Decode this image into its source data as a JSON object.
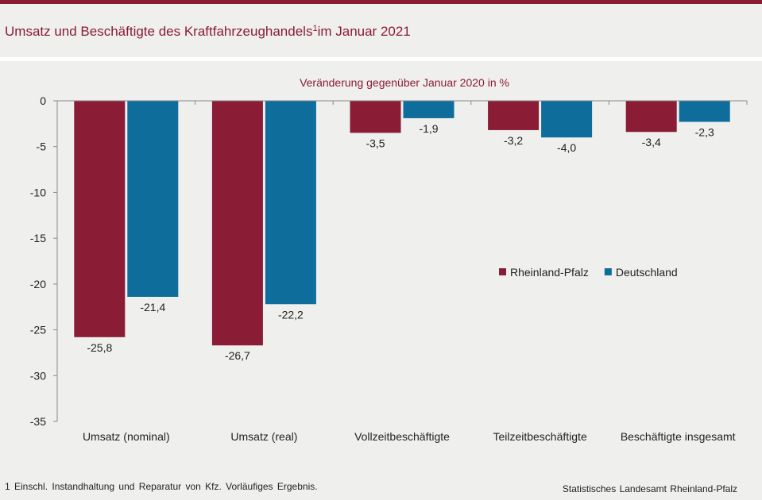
{
  "header": {
    "title_main": "Umsatz und Beschäftigte des Kraftfahrzeughandels",
    "title_sup": "1",
    "title_tail": "im Januar 2021"
  },
  "footer": {
    "footnote": "1 Einschl. Instandhaltung und Reparatur von Kfz. Vorläufiges Ergebnis.",
    "source": "Statistisches Landesamt Rheinland-Pfalz"
  },
  "chart_data": {
    "type": "bar",
    "subtitle": "Veränderung gegenüber Januar 2020 in %",
    "categories": [
      "Umsatz (nominal)",
      "Umsatz (real)",
      "Vollzeitbeschäftigte",
      "Teilzeitbeschäftigte",
      "Beschäftigte insgesamt"
    ],
    "series": [
      {
        "name": "Rheinland-Pfalz",
        "color": "#8a1c35",
        "values": [
          -25.8,
          -26.7,
          -3.5,
          -3.2,
          -3.4
        ],
        "labels": [
          "-25,8",
          "-26,7",
          "-3,5",
          "-3,2",
          "-3,4"
        ]
      },
      {
        "name": "Deutschland",
        "color": "#0f6d9c",
        "values": [
          -21.4,
          -22.2,
          -1.9,
          -4.0,
          -2.3
        ],
        "labels": [
          "-21,4",
          "-22,2",
          "-1,9",
          "-4,0",
          "-2,3"
        ]
      }
    ],
    "ylim": [
      -35,
      0
    ],
    "yticks": [
      0,
      -5,
      -10,
      -15,
      -20,
      -25,
      -30,
      -35
    ],
    "ytick_labels": [
      "0",
      "-5",
      "-10",
      "-15",
      "-20",
      "-25",
      "-30",
      "-35"
    ],
    "grid": false,
    "legend_position": "right"
  }
}
